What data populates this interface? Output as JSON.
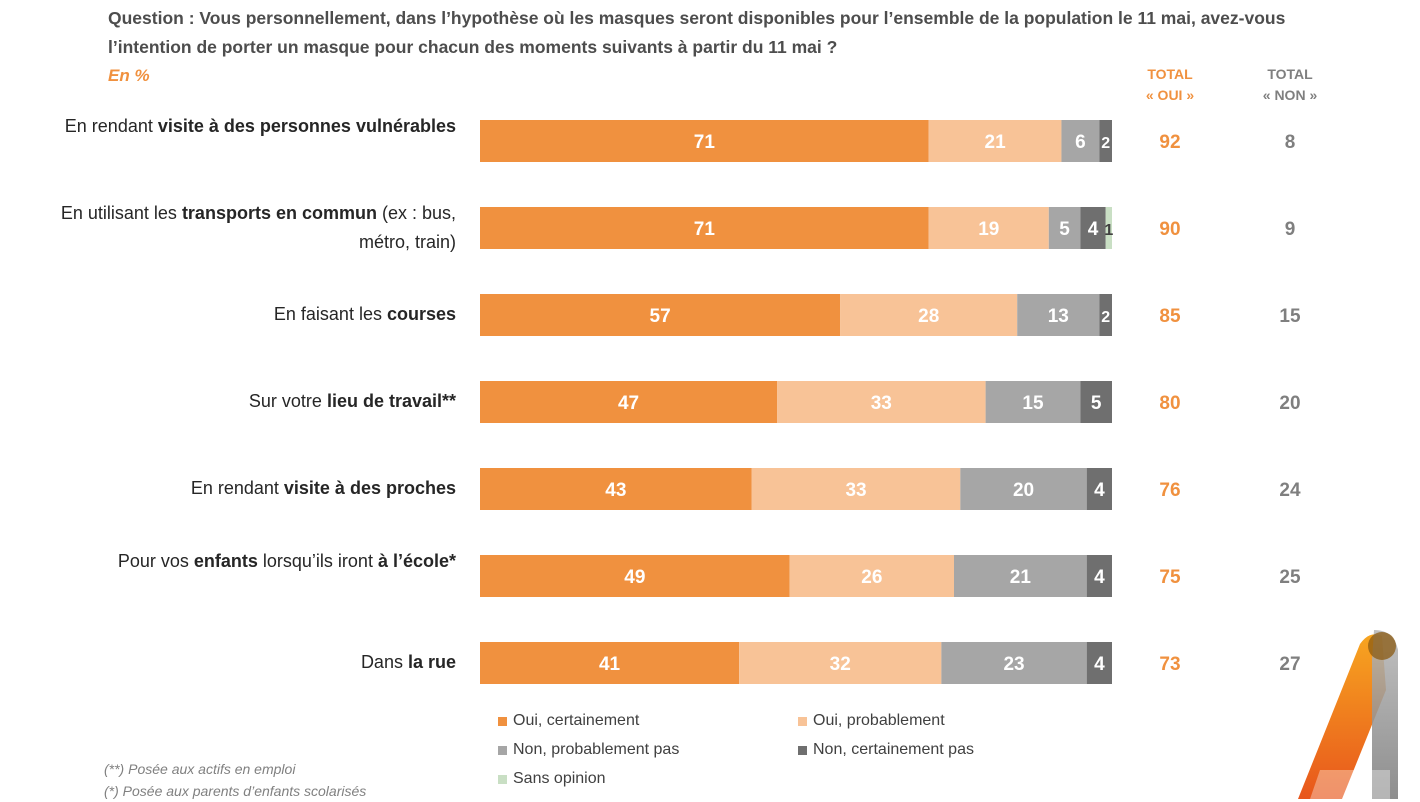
{
  "question": "Question : Vous personnellement, dans l’hypothèse où les masques seront disponibles pour l’ensemble de la population le 11 mai, avez-vous l’intention de porter un masque pour chacun des moments suivants à partir du 11 mai ?",
  "unit_label": "En %",
  "totals_headers": {
    "oui_line1": "TOTAL",
    "oui_line2": "« OUI »",
    "non_line1": "TOTAL",
    "non_line2": "« NON »"
  },
  "colors": {
    "oui_certainement": "#f0913f",
    "oui_probablement": "#f8c397",
    "non_probablement_pas": "#a6a6a6",
    "non_certainement_pas": "#6f6f6f",
    "sans_opinion": "#c9dfc4",
    "total_oui_text": "#f0913f",
    "total_non_text": "#7f7f7f"
  },
  "legend": [
    {
      "key": "oui_certainement",
      "label": "Oui, certainement"
    },
    {
      "key": "oui_probablement",
      "label": "Oui, probablement"
    },
    {
      "key": "non_probablement_pas",
      "label": "Non, probablement pas"
    },
    {
      "key": "non_certainement_pas",
      "label": "Non, certainement pas"
    },
    {
      "key": "sans_opinion",
      "label": "Sans opinion"
    }
  ],
  "notes": [
    "(**) Posée aux actifs en emploi",
    "(*) Posée aux parents d’enfants scolarisés"
  ],
  "row_labels": [
    [
      {
        "t": "En rendant ",
        "b": false
      },
      {
        "t": "visite à des personnes vulnérables",
        "b": true
      }
    ],
    [
      {
        "t": "En utilisant les ",
        "b": false
      },
      {
        "t": "transports en commun",
        "b": true
      },
      {
        "t": " (ex : bus, métro, train)",
        "b": false
      }
    ],
    [
      {
        "t": "En faisant les ",
        "b": false
      },
      {
        "t": "courses",
        "b": true
      }
    ],
    [
      {
        "t": "Sur votre ",
        "b": false
      },
      {
        "t": "lieu de travail**",
        "b": true
      }
    ],
    [
      {
        "t": "En rendant ",
        "b": false
      },
      {
        "t": "visite à des proches",
        "b": true
      }
    ],
    [
      {
        "t": "Pour vos ",
        "b": false
      },
      {
        "t": "enfants",
        "b": true
      },
      {
        "t": " lorsqu’ils iront ",
        "b": false
      },
      {
        "t": "à l’école*",
        "b": true
      }
    ],
    [
      {
        "t": "Dans ",
        "b": false
      },
      {
        "t": "la rue",
        "b": true
      }
    ]
  ],
  "chart_data": {
    "type": "bar",
    "orientation": "horizontal",
    "stacked": true,
    "unit": "%",
    "xlim": [
      0,
      100
    ],
    "categories": [
      "En rendant visite à des personnes vulnérables",
      "En utilisant les transports en commun (ex : bus, métro, train)",
      "En faisant les courses",
      "Sur votre lieu de travail**",
      "En rendant visite à des proches",
      "Pour vos enfants lorsqu’ils iront à l’école*",
      "Dans la rue"
    ],
    "series": [
      {
        "name": "Oui, certainement",
        "key": "oui_certainement",
        "values": [
          71,
          71,
          57,
          47,
          43,
          49,
          41
        ]
      },
      {
        "name": "Oui, probablement",
        "key": "oui_probablement",
        "values": [
          21,
          19,
          28,
          33,
          33,
          26,
          32
        ]
      },
      {
        "name": "Non, probablement pas",
        "key": "non_probablement_pas",
        "values": [
          6,
          5,
          13,
          15,
          20,
          21,
          23
        ]
      },
      {
        "name": "Non, certainement pas",
        "key": "non_certainement_pas",
        "values": [
          2,
          4,
          2,
          5,
          4,
          4,
          4
        ]
      },
      {
        "name": "Sans opinion",
        "key": "sans_opinion",
        "values": [
          0,
          1,
          0,
          0,
          0,
          0,
          0
        ]
      }
    ],
    "total_oui": [
      92,
      90,
      85,
      80,
      76,
      75,
      73
    ],
    "total_non": [
      8,
      9,
      15,
      20,
      24,
      25,
      27
    ],
    "legend_position": "bottom"
  }
}
